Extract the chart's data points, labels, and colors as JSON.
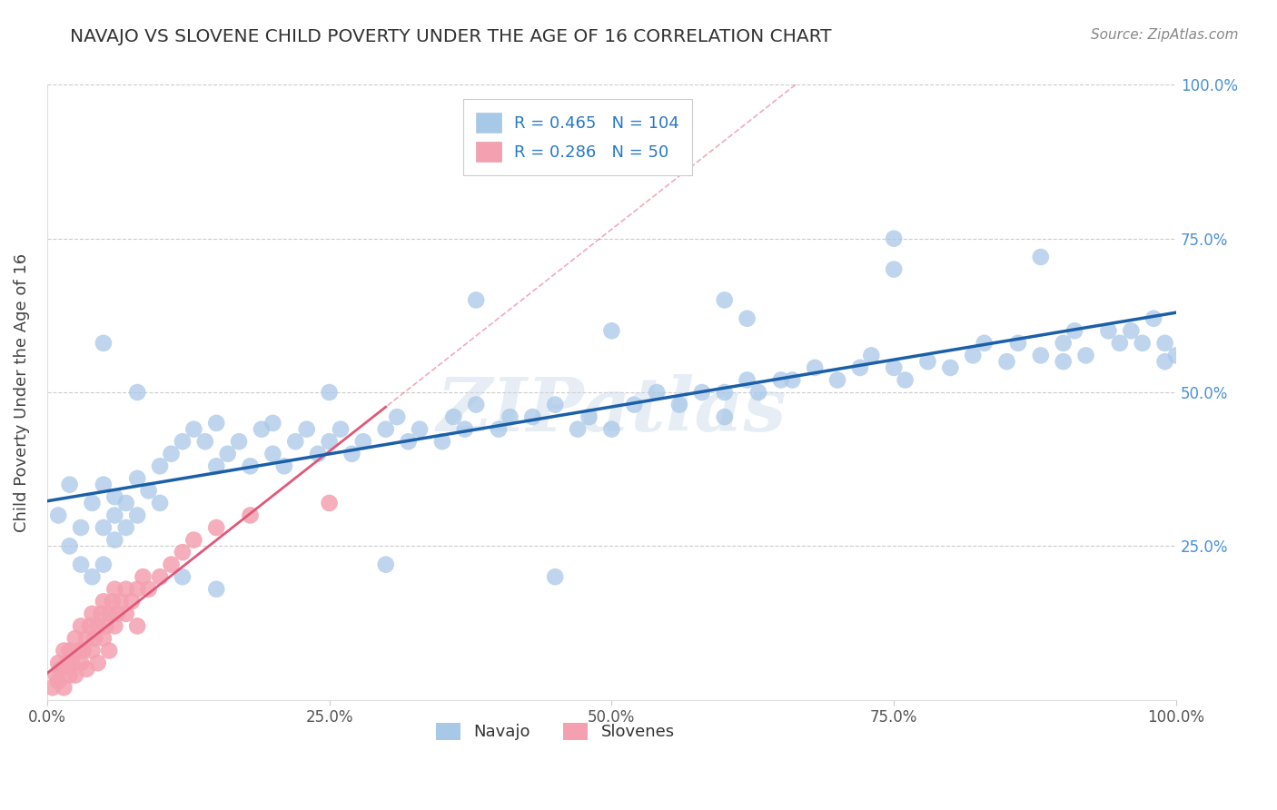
{
  "title": "NAVAJO VS SLOVENE CHILD POVERTY UNDER THE AGE OF 16 CORRELATION CHART",
  "source": "Source: ZipAtlas.com",
  "ylabel": "Child Poverty Under the Age of 16",
  "navajo_R": 0.465,
  "navajo_N": 104,
  "slovene_R": 0.286,
  "slovene_N": 50,
  "navajo_color": "#a8c8e8",
  "slovene_color": "#f4a0b0",
  "navajo_line_color": "#1a5fa8",
  "slovene_line_color": "#e05878",
  "watermark_text": "ZIPatlas",
  "xtick_labels": [
    "0.0%",
    "25.0%",
    "50.0%",
    "75.0%",
    "100.0%"
  ],
  "xtick_vals": [
    0.0,
    0.25,
    0.5,
    0.75,
    1.0
  ],
  "ytick_labels": [
    "25.0%",
    "50.0%",
    "75.0%",
    "100.0%"
  ],
  "ytick_vals": [
    0.25,
    0.5,
    0.75,
    1.0
  ],
  "right_ytick_color": "#4a90d9",
  "legend_navajo": "Navajo",
  "legend_slovene": "Slovenes",
  "title_color": "#333333",
  "source_color": "#888888",
  "axis_label_color": "#444444",
  "tick_color": "#555555",
  "grid_color": "#cccccc",
  "navajo_x": [
    0.01,
    0.02,
    0.02,
    0.03,
    0.03,
    0.04,
    0.04,
    0.05,
    0.05,
    0.05,
    0.06,
    0.06,
    0.06,
    0.07,
    0.07,
    0.08,
    0.08,
    0.09,
    0.1,
    0.1,
    0.11,
    0.12,
    0.13,
    0.14,
    0.15,
    0.15,
    0.16,
    0.17,
    0.18,
    0.19,
    0.2,
    0.2,
    0.21,
    0.22,
    0.23,
    0.24,
    0.25,
    0.26,
    0.27,
    0.28,
    0.3,
    0.31,
    0.32,
    0.33,
    0.35,
    0.36,
    0.37,
    0.38,
    0.4,
    0.41,
    0.43,
    0.45,
    0.47,
    0.48,
    0.5,
    0.52,
    0.54,
    0.56,
    0.58,
    0.6,
    0.6,
    0.62,
    0.63,
    0.65,
    0.66,
    0.68,
    0.7,
    0.72,
    0.73,
    0.75,
    0.76,
    0.78,
    0.8,
    0.82,
    0.83,
    0.85,
    0.86,
    0.88,
    0.9,
    0.91,
    0.92,
    0.94,
    0.95,
    0.96,
    0.97,
    0.98,
    0.99,
    0.99,
    1.0,
    0.88,
    0.75,
    0.62,
    0.5,
    0.38,
    0.25,
    0.12,
    0.08,
    0.15,
    0.3,
    0.45,
    0.6,
    0.75,
    0.9,
    0.05
  ],
  "navajo_y": [
    0.3,
    0.25,
    0.35,
    0.28,
    0.22,
    0.32,
    0.2,
    0.28,
    0.35,
    0.22,
    0.3,
    0.26,
    0.33,
    0.28,
    0.32,
    0.36,
    0.3,
    0.34,
    0.38,
    0.32,
    0.4,
    0.42,
    0.44,
    0.42,
    0.38,
    0.45,
    0.4,
    0.42,
    0.38,
    0.44,
    0.4,
    0.45,
    0.38,
    0.42,
    0.44,
    0.4,
    0.42,
    0.44,
    0.4,
    0.42,
    0.44,
    0.46,
    0.42,
    0.44,
    0.42,
    0.46,
    0.44,
    0.48,
    0.44,
    0.46,
    0.46,
    0.48,
    0.44,
    0.46,
    0.44,
    0.48,
    0.5,
    0.48,
    0.5,
    0.5,
    0.46,
    0.52,
    0.5,
    0.52,
    0.52,
    0.54,
    0.52,
    0.54,
    0.56,
    0.54,
    0.52,
    0.55,
    0.54,
    0.56,
    0.58,
    0.55,
    0.58,
    0.56,
    0.58,
    0.6,
    0.56,
    0.6,
    0.58,
    0.6,
    0.58,
    0.62,
    0.58,
    0.55,
    0.56,
    0.72,
    0.75,
    0.62,
    0.6,
    0.65,
    0.5,
    0.2,
    0.5,
    0.18,
    0.22,
    0.2,
    0.65,
    0.7,
    0.55,
    0.58
  ],
  "slovene_x": [
    0.005,
    0.008,
    0.01,
    0.01,
    0.012,
    0.015,
    0.015,
    0.018,
    0.02,
    0.02,
    0.022,
    0.025,
    0.025,
    0.028,
    0.03,
    0.03,
    0.032,
    0.035,
    0.035,
    0.038,
    0.04,
    0.04,
    0.042,
    0.045,
    0.045,
    0.048,
    0.05,
    0.05,
    0.052,
    0.055,
    0.055,
    0.058,
    0.06,
    0.06,
    0.062,
    0.065,
    0.07,
    0.07,
    0.075,
    0.08,
    0.08,
    0.085,
    0.09,
    0.1,
    0.11,
    0.12,
    0.13,
    0.15,
    0.18,
    0.25
  ],
  "slovene_y": [
    0.02,
    0.04,
    0.03,
    0.06,
    0.05,
    0.08,
    0.02,
    0.06,
    0.04,
    0.08,
    0.06,
    0.1,
    0.04,
    0.08,
    0.06,
    0.12,
    0.08,
    0.1,
    0.05,
    0.12,
    0.08,
    0.14,
    0.1,
    0.12,
    0.06,
    0.14,
    0.1,
    0.16,
    0.12,
    0.14,
    0.08,
    0.16,
    0.12,
    0.18,
    0.14,
    0.16,
    0.14,
    0.18,
    0.16,
    0.18,
    0.12,
    0.2,
    0.18,
    0.2,
    0.22,
    0.24,
    0.26,
    0.28,
    0.3,
    0.32
  ]
}
